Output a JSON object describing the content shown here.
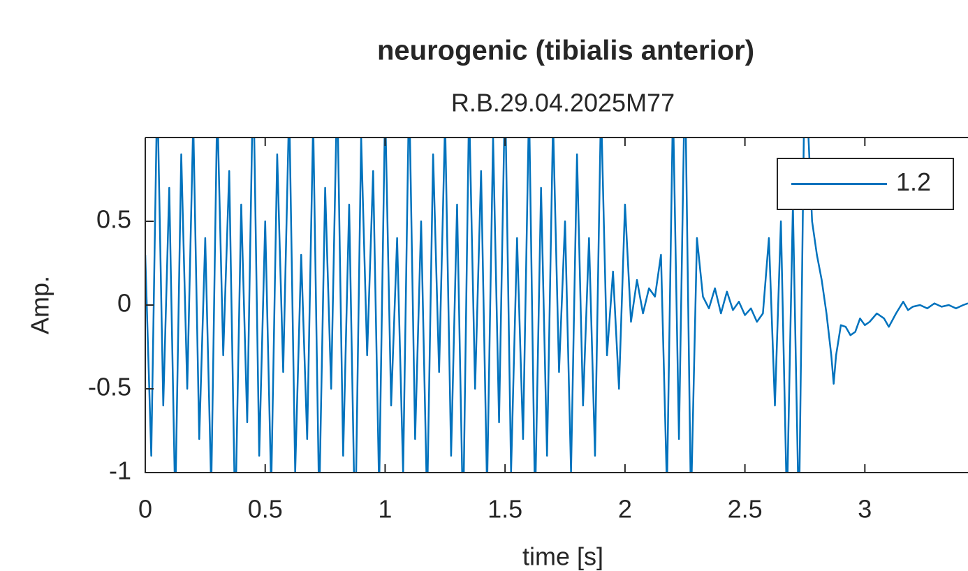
{
  "chart_data": {
    "type": "line",
    "title": "neurogenic (tibialis anterior)",
    "subtitle": "R.B.29.04.2025M77",
    "xlabel": "time [s]",
    "ylabel": "Amp.",
    "x": [
      0,
      0.025,
      0.05,
      0.075,
      0.1,
      0.125,
      0.15,
      0.175,
      0.2,
      0.225,
      0.25,
      0.275,
      0.3,
      0.325,
      0.35,
      0.375,
      0.4,
      0.425,
      0.45,
      0.475,
      0.5,
      0.525,
      0.55,
      0.575,
      0.6,
      0.625,
      0.65,
      0.675,
      0.7,
      0.725,
      0.75,
      0.775,
      0.8,
      0.825,
      0.85,
      0.875,
      0.9,
      0.925,
      0.95,
      0.975,
      1.0,
      1.025,
      1.05,
      1.075,
      1.1,
      1.125,
      1.15,
      1.175,
      1.2,
      1.225,
      1.25,
      1.275,
      1.3,
      1.325,
      1.35,
      1.375,
      1.4,
      1.425,
      1.45,
      1.475,
      1.5,
      1.525,
      1.55,
      1.575,
      1.6,
      1.625,
      1.65,
      1.675,
      1.7,
      1.725,
      1.75,
      1.775,
      1.8,
      1.825,
      1.85,
      1.875,
      1.9,
      1.925,
      1.95,
      1.975,
      2.0,
      2.025,
      2.05,
      2.075,
      2.1,
      2.125,
      2.15,
      2.175,
      2.2,
      2.225,
      2.25,
      2.275,
      2.3,
      2.325,
      2.35,
      2.375,
      2.4,
      2.425,
      2.45,
      2.475,
      2.5,
      2.525,
      2.55,
      2.575,
      2.6,
      2.625,
      2.65,
      2.675,
      2.7,
      2.725,
      2.75,
      2.78,
      2.8,
      2.82,
      2.84,
      2.86,
      2.87,
      2.88,
      2.9,
      2.92,
      2.94,
      2.96,
      2.98,
      3.0,
      3.02,
      3.05,
      3.08,
      3.1,
      3.13,
      3.16,
      3.18,
      3.2,
      3.23,
      3.26,
      3.29,
      3.32,
      3.35,
      3.38,
      3.41,
      3.43
    ],
    "series": [
      {
        "name": "1.2",
        "color": "#0072bd",
        "values": [
          0.3,
          -0.9,
          1.3,
          -0.6,
          0.7,
          -1.2,
          0.9,
          -0.5,
          1.1,
          -0.8,
          0.4,
          -1.1,
          1.2,
          -0.3,
          0.8,
          -1.3,
          0.6,
          -0.7,
          1.4,
          -0.9,
          0.5,
          -1.1,
          0.9,
          -0.4,
          1.2,
          -1.0,
          0.3,
          -0.8,
          1.1,
          -1.2,
          0.7,
          -0.5,
          1.3,
          -0.9,
          0.6,
          -1.4,
          1.0,
          -0.3,
          0.8,
          -1.1,
          1.2,
          -0.6,
          0.4,
          -1.0,
          1.3,
          -0.8,
          0.5,
          -1.2,
          0.9,
          -0.4,
          1.1,
          -0.9,
          0.6,
          -1.3,
          1.2,
          -0.5,
          0.8,
          -1.1,
          1.0,
          -0.7,
          1.3,
          -1.0,
          0.4,
          -0.8,
          1.2,
          -1.2,
          0.7,
          -0.9,
          1.1,
          -0.4,
          0.5,
          -1.0,
          0.9,
          -0.6,
          0.4,
          -0.9,
          1.2,
          -0.3,
          0.2,
          -0.5,
          0.6,
          -0.1,
          0.15,
          -0.05,
          0.1,
          0.05,
          0.3,
          -1.1,
          1.2,
          -0.8,
          1.4,
          -1.2,
          0.4,
          0.05,
          -0.02,
          0.1,
          -0.05,
          0.08,
          -0.03,
          0.02,
          -0.06,
          -0.02,
          -0.1,
          -0.05,
          0.4,
          -0.6,
          0.5,
          -1.2,
          0.6,
          -1.3,
          1.5,
          0.5,
          0.3,
          0.15,
          -0.05,
          -0.3,
          -0.47,
          -0.3,
          -0.12,
          -0.13,
          -0.18,
          -0.16,
          -0.08,
          -0.12,
          -0.1,
          -0.05,
          -0.08,
          -0.13,
          -0.05,
          0.02,
          -0.03,
          -0.01,
          0.0,
          -0.02,
          0.01,
          -0.01,
          0.0,
          -0.02,
          0.0,
          0.01
        ]
      }
    ],
    "xlim": [
      0,
      3.43
    ],
    "ylim": [
      -1,
      1
    ],
    "xticks": [
      0,
      0.5,
      1,
      1.5,
      2,
      2.5,
      3
    ],
    "yticks": [
      -1,
      -0.5,
      0,
      0.5
    ],
    "grid": false,
    "legend": "northeast"
  }
}
